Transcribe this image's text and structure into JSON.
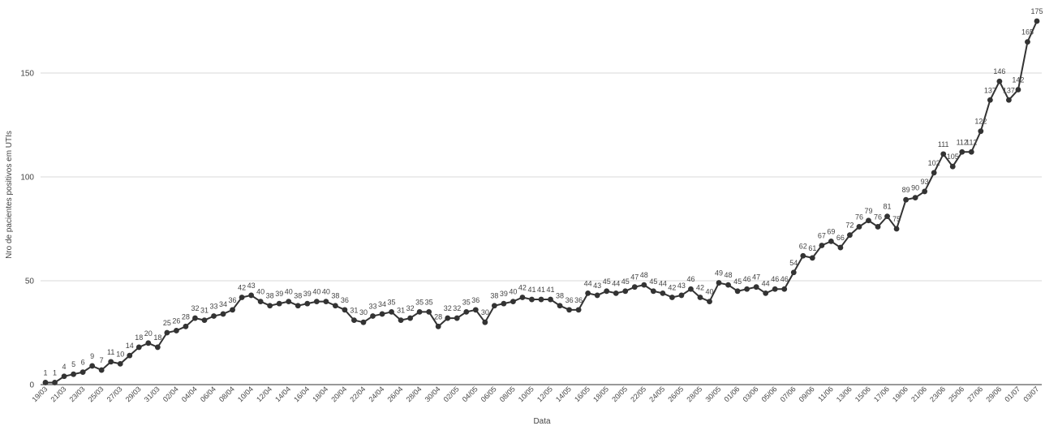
{
  "chart_data": {
    "type": "line",
    "title": "",
    "xlabel": "Data",
    "ylabel": "Nro de pacientes positivos em UTIs",
    "ylim": [
      0,
      175
    ],
    "yticks": [
      0,
      50,
      100,
      150
    ],
    "grid": true,
    "legend": "none",
    "line_color": "#333333",
    "x": [
      "19/03",
      "20/03",
      "21/03",
      "22/03",
      "23/03",
      "24/03",
      "25/03",
      "26/03",
      "27/03",
      "28/03",
      "29/03",
      "30/03",
      "31/03",
      "01/04",
      "02/04",
      "03/04",
      "04/04",
      "05/04",
      "06/04",
      "07/04",
      "08/04",
      "09/04",
      "10/04",
      "11/04",
      "12/04",
      "13/04",
      "14/04",
      "15/04",
      "16/04",
      "17/04",
      "18/04",
      "19/04",
      "20/04",
      "21/04",
      "22/04",
      "23/04",
      "24/04",
      "25/04",
      "26/04",
      "27/04",
      "28/04",
      "29/04",
      "30/04",
      "01/05",
      "02/05",
      "03/05",
      "04/05",
      "05/05",
      "06/05",
      "07/05",
      "08/05",
      "09/05",
      "10/05",
      "11/05",
      "12/05",
      "13/05",
      "14/05",
      "15/05",
      "16/05",
      "17/05",
      "18/05",
      "19/05",
      "20/05",
      "21/05",
      "22/05",
      "23/05",
      "24/05",
      "25/05",
      "26/05",
      "27/05",
      "28/05",
      "29/05",
      "30/05",
      "31/05",
      "01/06",
      "02/06",
      "03/06",
      "04/06",
      "05/06",
      "06/06",
      "07/06",
      "08/06",
      "09/06",
      "10/06",
      "11/06",
      "12/06",
      "13/06",
      "14/06",
      "15/06",
      "16/06",
      "17/06",
      "18/06",
      "19/06",
      "20/06",
      "21/06",
      "22/06",
      "23/06",
      "24/06",
      "25/06",
      "26/06",
      "27/06",
      "28/06",
      "29/06",
      "30/06",
      "01/07",
      "02/07",
      "03/07"
    ],
    "xtick_labels": [
      "19/03",
      "21/03",
      "23/03",
      "25/03",
      "27/03",
      "29/03",
      "31/03",
      "02/04",
      "04/04",
      "06/04",
      "08/04",
      "10/04",
      "12/04",
      "14/04",
      "16/04",
      "18/04",
      "20/04",
      "22/04",
      "24/04",
      "26/04",
      "28/04",
      "30/04",
      "02/05",
      "04/05",
      "06/05",
      "08/05",
      "10/05",
      "12/05",
      "14/05",
      "16/05",
      "18/05",
      "20/05",
      "22/05",
      "24/05",
      "26/05",
      "28/05",
      "30/05",
      "01/06",
      "03/06",
      "05/06",
      "07/06",
      "09/06",
      "11/06",
      "13/06",
      "15/06",
      "17/06",
      "19/06",
      "21/06",
      "23/06",
      "25/06",
      "27/06",
      "29/06",
      "01/07",
      "03/07"
    ],
    "values": [
      1,
      1,
      4,
      5,
      6,
      9,
      7,
      11,
      10,
      14,
      18,
      20,
      18,
      25,
      26,
      28,
      32,
      31,
      33,
      34,
      36,
      42,
      43,
      40,
      38,
      39,
      40,
      38,
      39,
      40,
      40,
      38,
      36,
      31,
      30,
      33,
      34,
      35,
      31,
      32,
      35,
      35,
      28,
      32,
      32,
      35,
      36,
      30,
      38,
      39,
      40,
      42,
      41,
      41,
      41,
      38,
      36,
      36,
      44,
      43,
      45,
      44,
      45,
      47,
      48,
      45,
      44,
      42,
      43,
      46,
      42,
      40,
      49,
      48,
      45,
      46,
      47,
      44,
      46,
      46,
      54,
      62,
      61,
      67,
      69,
      66,
      72,
      76,
      79,
      76,
      81,
      75,
      89,
      90,
      93,
      102,
      111,
      105,
      112,
      112,
      122,
      137,
      146,
      137,
      142,
      165,
      175
    ]
  }
}
